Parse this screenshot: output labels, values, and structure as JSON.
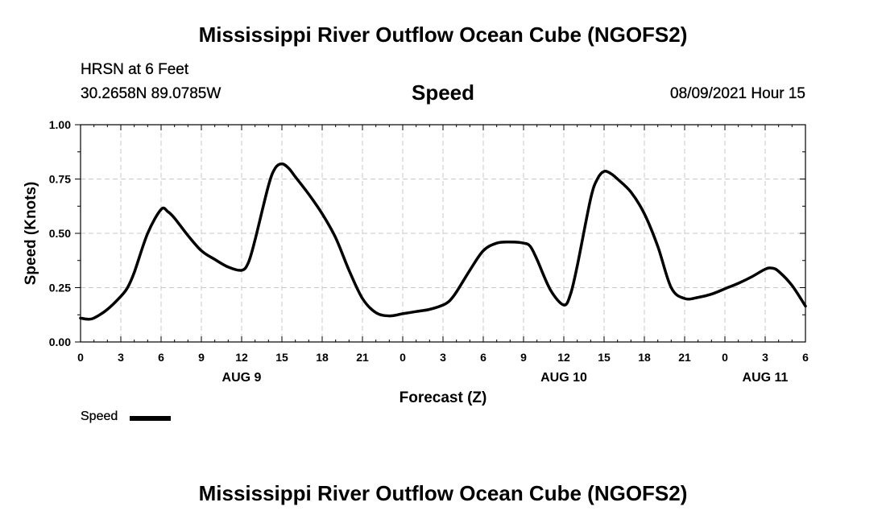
{
  "page": {
    "title_top": "Mississippi River Outflow Ocean Cube (NGOFS2)",
    "title_bottom": "Mississippi River Outflow Ocean Cube (NGOFS2)",
    "station": "HRSN at 6 Feet",
    "coordinates": "30.2658N  89.0785W",
    "subtitle": "Speed",
    "datetime": "08/09/2021 Hour 15"
  },
  "chart_data": {
    "type": "line",
    "title": "Speed",
    "xlabel": "Forecast (Z)",
    "ylabel": "Speed (Knots)",
    "xlim": [
      0,
      54
    ],
    "ylim": [
      0,
      1.0
    ],
    "grid": true,
    "x_ticks": [
      {
        "x": 0,
        "label": "0"
      },
      {
        "x": 3,
        "label": "3"
      },
      {
        "x": 6,
        "label": "6"
      },
      {
        "x": 9,
        "label": "9"
      },
      {
        "x": 12,
        "label": "12"
      },
      {
        "x": 15,
        "label": "15"
      },
      {
        "x": 18,
        "label": "18"
      },
      {
        "x": 21,
        "label": "21"
      },
      {
        "x": 24,
        "label": "0"
      },
      {
        "x": 27,
        "label": "3"
      },
      {
        "x": 30,
        "label": "6"
      },
      {
        "x": 33,
        "label": "9"
      },
      {
        "x": 36,
        "label": "12"
      },
      {
        "x": 39,
        "label": "15"
      },
      {
        "x": 42,
        "label": "18"
      },
      {
        "x": 45,
        "label": "21"
      },
      {
        "x": 48,
        "label": "0"
      },
      {
        "x": 51,
        "label": "3"
      },
      {
        "x": 54,
        "label": "6"
      }
    ],
    "y_ticks": [
      {
        "y": 0.0,
        "label": "0.00"
      },
      {
        "y": 0.25,
        "label": "0.25"
      },
      {
        "y": 0.5,
        "label": "0.50"
      },
      {
        "y": 0.75,
        "label": "0.75"
      },
      {
        "y": 1.0,
        "label": "1.00"
      }
    ],
    "day_labels": [
      {
        "x": 12,
        "label": "AUG 9"
      },
      {
        "x": 36,
        "label": "AUG 10"
      },
      {
        "x": 51,
        "label": "AUG 11"
      }
    ],
    "series": [
      {
        "name": "Speed",
        "x": [
          0,
          0.5,
          1,
          2,
          3,
          3.5,
          4,
          5,
          6,
          6.5,
          7,
          8,
          9,
          10,
          11,
          12,
          12.5,
          13,
          14,
          14.5,
          15,
          15.5,
          16,
          17,
          18,
          19,
          20,
          21,
          22,
          23,
          24,
          25,
          26,
          27,
          27.5,
          28,
          29,
          30,
          31,
          32,
          33,
          33.5,
          34,
          35,
          36,
          36.5,
          37,
          38,
          38.5,
          39,
          39.5,
          40,
          41,
          42,
          43,
          44,
          45,
          46,
          47,
          48,
          49,
          50,
          51,
          51.5,
          52,
          53,
          54
        ],
        "y": [
          0.11,
          0.105,
          0.11,
          0.15,
          0.21,
          0.25,
          0.32,
          0.5,
          0.61,
          0.6,
          0.57,
          0.49,
          0.42,
          0.38,
          0.345,
          0.33,
          0.365,
          0.47,
          0.72,
          0.8,
          0.82,
          0.8,
          0.76,
          0.68,
          0.59,
          0.48,
          0.33,
          0.2,
          0.135,
          0.12,
          0.13,
          0.14,
          0.15,
          0.17,
          0.19,
          0.23,
          0.33,
          0.42,
          0.455,
          0.46,
          0.455,
          0.44,
          0.38,
          0.24,
          0.17,
          0.22,
          0.35,
          0.66,
          0.75,
          0.785,
          0.775,
          0.75,
          0.69,
          0.59,
          0.44,
          0.25,
          0.2,
          0.205,
          0.22,
          0.245,
          0.27,
          0.3,
          0.335,
          0.34,
          0.325,
          0.26,
          0.165
        ]
      }
    ],
    "legend": {
      "position": "bottom-left",
      "entries": [
        "Speed"
      ]
    }
  }
}
